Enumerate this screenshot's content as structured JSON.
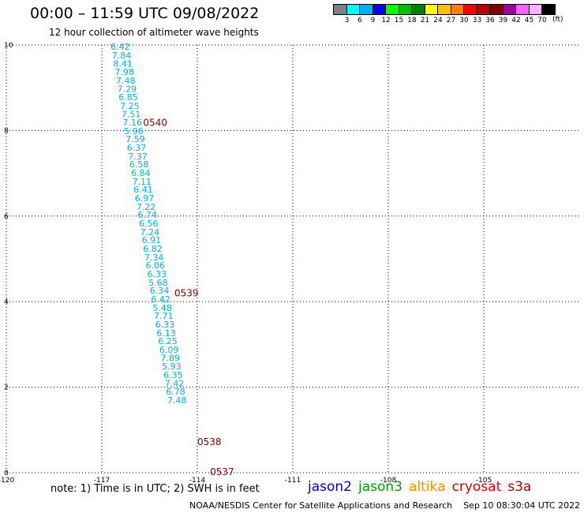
{
  "header": {
    "title": "00:00 – 11:59 UTC 09/08/2022",
    "subtitle": "12 hour collection of altimeter wave heights"
  },
  "scale": {
    "labels": [
      "3",
      "6",
      "9",
      "12",
      "15",
      "18",
      "21",
      "24",
      "27",
      "30",
      "33",
      "36",
      "39",
      "42",
      "45",
      "70"
    ],
    "colors": [
      "#808080",
      "#00ffff",
      "#00b0ff",
      "#0000ff",
      "#00ff00",
      "#00c000",
      "#008000",
      "#ffff00",
      "#ffc000",
      "#ff8000",
      "#ff0000",
      "#c00000",
      "#800000",
      "#a000a0",
      "#ff60ff",
      "#ffb0ff",
      "#000000"
    ],
    "unit": "(ft)"
  },
  "chart_data": {
    "type": "scatter",
    "xlim": [
      -120,
      -102
    ],
    "ylim": [
      0,
      10
    ],
    "xticks": [
      "-120",
      "-117",
      "-114",
      "-111",
      "-108",
      "-105"
    ],
    "xtick_values": [
      -120,
      -117,
      -114,
      -111,
      -108,
      -105
    ],
    "yticks": [
      "0",
      "2",
      "4",
      "6",
      "8",
      "10"
    ],
    "ytick_values": [
      0,
      2,
      4,
      6,
      8,
      10
    ],
    "grid": true,
    "points": [
      {
        "x": -116.42,
        "y": 9.96,
        "label": "6.42"
      },
      {
        "x": -116.38,
        "y": 9.76,
        "label": "7.84"
      },
      {
        "x": -116.34,
        "y": 9.57,
        "label": "8.41"
      },
      {
        "x": -116.29,
        "y": 9.37,
        "label": "7.98"
      },
      {
        "x": -116.25,
        "y": 9.17,
        "label": "7.48"
      },
      {
        "x": -116.21,
        "y": 8.98,
        "label": "7.29"
      },
      {
        "x": -116.17,
        "y": 8.78,
        "label": "6.85"
      },
      {
        "x": -116.12,
        "y": 8.58,
        "label": "7.25"
      },
      {
        "x": -116.08,
        "y": 8.39,
        "label": "7.51"
      },
      {
        "x": -116.04,
        "y": 8.19,
        "label": "7.16"
      },
      {
        "x": -116.0,
        "y": 7.99,
        "label": "5.96"
      },
      {
        "x": -115.95,
        "y": 7.8,
        "label": "7.59"
      },
      {
        "x": -115.91,
        "y": 7.6,
        "label": "6.37"
      },
      {
        "x": -115.87,
        "y": 7.4,
        "label": "7.37"
      },
      {
        "x": -115.83,
        "y": 7.21,
        "label": "6.58"
      },
      {
        "x": -115.78,
        "y": 7.01,
        "label": "6.84"
      },
      {
        "x": -115.74,
        "y": 6.81,
        "label": "7.11"
      },
      {
        "x": -115.7,
        "y": 6.62,
        "label": "6.41"
      },
      {
        "x": -115.66,
        "y": 6.42,
        "label": "6.97"
      },
      {
        "x": -115.61,
        "y": 6.22,
        "label": "7.22"
      },
      {
        "x": -115.57,
        "y": 6.03,
        "label": "6.74"
      },
      {
        "x": -115.53,
        "y": 5.83,
        "label": "6.56"
      },
      {
        "x": -115.49,
        "y": 5.63,
        "label": "7.24"
      },
      {
        "x": -115.44,
        "y": 5.44,
        "label": "6.91"
      },
      {
        "x": -115.4,
        "y": 5.24,
        "label": "6.82"
      },
      {
        "x": -115.36,
        "y": 5.04,
        "label": "7.34"
      },
      {
        "x": -115.32,
        "y": 4.85,
        "label": "6.06"
      },
      {
        "x": -115.27,
        "y": 4.65,
        "label": "6.33"
      },
      {
        "x": -115.23,
        "y": 4.45,
        "label": "5.68"
      },
      {
        "x": -115.19,
        "y": 4.26,
        "label": "6.34"
      },
      {
        "x": -115.15,
        "y": 4.06,
        "label": "6.42"
      },
      {
        "x": -115.1,
        "y": 3.86,
        "label": "5.48"
      },
      {
        "x": -115.06,
        "y": 3.67,
        "label": "7.71"
      },
      {
        "x": -115.02,
        "y": 3.47,
        "label": "6.33"
      },
      {
        "x": -114.98,
        "y": 3.27,
        "label": "6.13"
      },
      {
        "x": -114.93,
        "y": 3.08,
        "label": "6.25"
      },
      {
        "x": -114.89,
        "y": 2.88,
        "label": "6.09"
      },
      {
        "x": -114.85,
        "y": 2.68,
        "label": "7.89"
      },
      {
        "x": -114.81,
        "y": 2.49,
        "label": "5.93"
      },
      {
        "x": -114.76,
        "y": 2.29,
        "label": "6.35"
      },
      {
        "x": -114.72,
        "y": 2.09,
        "label": "7.42"
      },
      {
        "x": -114.68,
        "y": 1.9,
        "label": "6.78"
      },
      {
        "x": -114.64,
        "y": 1.7,
        "label": "7.48"
      }
    ],
    "time_labels": [
      {
        "x": -115.7,
        "y": 8.18,
        "label": "0540"
      },
      {
        "x": -114.72,
        "y": 4.2,
        "label": "0539"
      },
      {
        "x": -114.0,
        "y": 0.72,
        "label": "0538"
      },
      {
        "x": -113.6,
        "y": 0.02,
        "label": "0537"
      }
    ]
  },
  "footer": {
    "note": "note: 1) Time is in UTC; 2) SWH is in feet",
    "satellites": [
      {
        "name": "jason2",
        "color": "#0000cc"
      },
      {
        "name": "jason3",
        "color": "#00a000"
      },
      {
        "name": "altika",
        "color": "#ff8c00"
      },
      {
        "name": "cryosat",
        "color": "#e00000"
      },
      {
        "name": "s3a",
        "color": "#b00000"
      }
    ],
    "credit": "NOAA/NESDIS Center for Satellite Applications and Research",
    "timestamp": "Sep 10 08:30:04 UTC 2022"
  }
}
